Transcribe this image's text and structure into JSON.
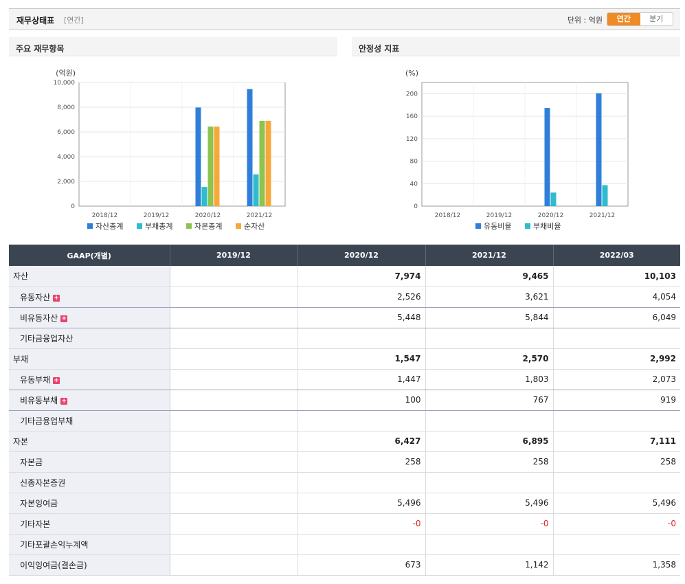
{
  "header": {
    "title": "재무상태표",
    "subtitle": "[연간]",
    "unit": "단위 : 억원",
    "toggle": [
      "연간",
      "분기"
    ]
  },
  "colors": {
    "accent": "#f08a24",
    "header_bg": "#3b4552",
    "label_bg": "#eef0f6",
    "negative": "#e02020"
  },
  "chart_data": [
    {
      "type": "bar",
      "title": "주요 재무항목",
      "unit_label": "(억원)",
      "categories": [
        "2018/12",
        "2019/12",
        "2020/12",
        "2021/12"
      ],
      "ylim": [
        0,
        10000
      ],
      "yticks": [
        "0",
        "2,000",
        "4,000",
        "6,000",
        "8,000",
        "10,000"
      ],
      "grid": true,
      "legend": "bottom",
      "series": [
        {
          "name": "자산총계",
          "color": "#2f7fd9",
          "values": [
            0,
            0,
            7974,
            9465
          ]
        },
        {
          "name": "부채총계",
          "color": "#2ebccf",
          "values": [
            0,
            0,
            1547,
            2570
          ]
        },
        {
          "name": "자본총계",
          "color": "#8dc44f",
          "values": [
            0,
            0,
            6427,
            6895
          ]
        },
        {
          "name": "순자산",
          "color": "#f8a83a",
          "values": [
            0,
            0,
            6427,
            6895
          ]
        }
      ]
    },
    {
      "type": "bar",
      "title": "안정성 지표",
      "unit_label": "(%)",
      "categories": [
        "2018/12",
        "2019/12",
        "2020/12",
        "2021/12"
      ],
      "ylim": [
        0,
        220
      ],
      "yticks": [
        "0",
        "40",
        "80",
        "120",
        "160",
        "200"
      ],
      "grid": true,
      "legend": "bottom",
      "series": [
        {
          "name": "유동비율",
          "color": "#2f7fd9",
          "values": [
            0,
            0,
            174.6,
            200.8
          ]
        },
        {
          "name": "부채비율",
          "color": "#2ebccf",
          "values": [
            0,
            0,
            24.1,
            37.3
          ]
        }
      ]
    }
  ],
  "table": {
    "headers": [
      "GAAP(개별)",
      "2019/12",
      "2020/12",
      "2021/12",
      "2022/03"
    ],
    "rows": [
      {
        "label": "자산",
        "level": "major",
        "expand": false,
        "values": [
          "",
          "7,974",
          "9,465",
          "10,103"
        ]
      },
      {
        "label": "유동자산",
        "level": "sub",
        "expand": true,
        "values": [
          "",
          "2,526",
          "3,621",
          "4,054"
        ]
      },
      {
        "label": "비유동자산",
        "level": "sub",
        "expand": true,
        "values": [
          "",
          "5,448",
          "5,844",
          "6,049"
        ]
      },
      {
        "label": "기타금융업자산",
        "level": "sub",
        "expand": false,
        "values": [
          "",
          "",
          "",
          ""
        ]
      },
      {
        "label": "부채",
        "level": "major",
        "expand": false,
        "values": [
          "",
          "1,547",
          "2,570",
          "2,992"
        ]
      },
      {
        "label": "유동부채",
        "level": "sub",
        "expand": true,
        "values": [
          "",
          "1,447",
          "1,803",
          "2,073"
        ]
      },
      {
        "label": "비유동부채",
        "level": "sub",
        "expand": true,
        "values": [
          "",
          "100",
          "767",
          "919"
        ]
      },
      {
        "label": "기타금융업부채",
        "level": "sub",
        "expand": false,
        "values": [
          "",
          "",
          "",
          ""
        ]
      },
      {
        "label": "자본",
        "level": "major",
        "expand": false,
        "values": [
          "",
          "6,427",
          "6,895",
          "7,111"
        ]
      },
      {
        "label": "자본금",
        "level": "sub",
        "expand": false,
        "values": [
          "",
          "258",
          "258",
          "258"
        ]
      },
      {
        "label": "신종자본증권",
        "level": "sub",
        "expand": false,
        "values": [
          "",
          "",
          "",
          ""
        ]
      },
      {
        "label": "자본잉여금",
        "level": "sub",
        "expand": false,
        "values": [
          "",
          "5,496",
          "5,496",
          "5,496"
        ]
      },
      {
        "label": "기타자본",
        "level": "sub",
        "expand": false,
        "values": [
          "",
          "-0",
          "-0",
          "-0"
        ]
      },
      {
        "label": "기타포괄손익누계액",
        "level": "sub",
        "expand": false,
        "values": [
          "",
          "",
          "",
          ""
        ]
      },
      {
        "label": "이익잉여금(결손금)",
        "level": "sub",
        "expand": false,
        "values": [
          "",
          "673",
          "1,142",
          "1,358"
        ]
      }
    ]
  }
}
